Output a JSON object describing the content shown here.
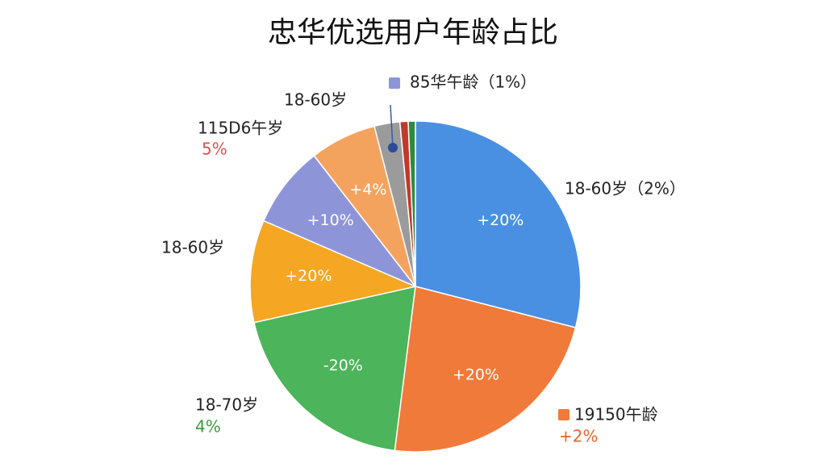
{
  "chart_data": {
    "type": "pie",
    "title": "忠华优选用户年龄占比",
    "values": [
      29,
      23,
      19.5,
      10,
      8,
      6.5,
      2.5,
      0.8,
      0.7
    ],
    "colors": [
      "#4a90e2",
      "#f07a3a",
      "#4cb45a",
      "#f5a623",
      "#8e94d8",
      "#f4a35f",
      "#9b9b9b",
      "#c0392b",
      "#2e8b3d"
    ],
    "categories": [
      "18-60岁（2%）",
      "19150午龄",
      "18-70岁",
      "18-60岁",
      "115D6午岁",
      "18-60岁",
      "85华午龄（1%）",
      null,
      null
    ],
    "notes": [
      null,
      "+2%",
      "4%",
      null,
      "5%",
      null,
      null,
      null,
      null
    ],
    "inner_labels": [
      "+20%",
      "+20%",
      "-20%",
      "+20%",
      "+10%",
      "+4%",
      null,
      null,
      null
    ]
  }
}
